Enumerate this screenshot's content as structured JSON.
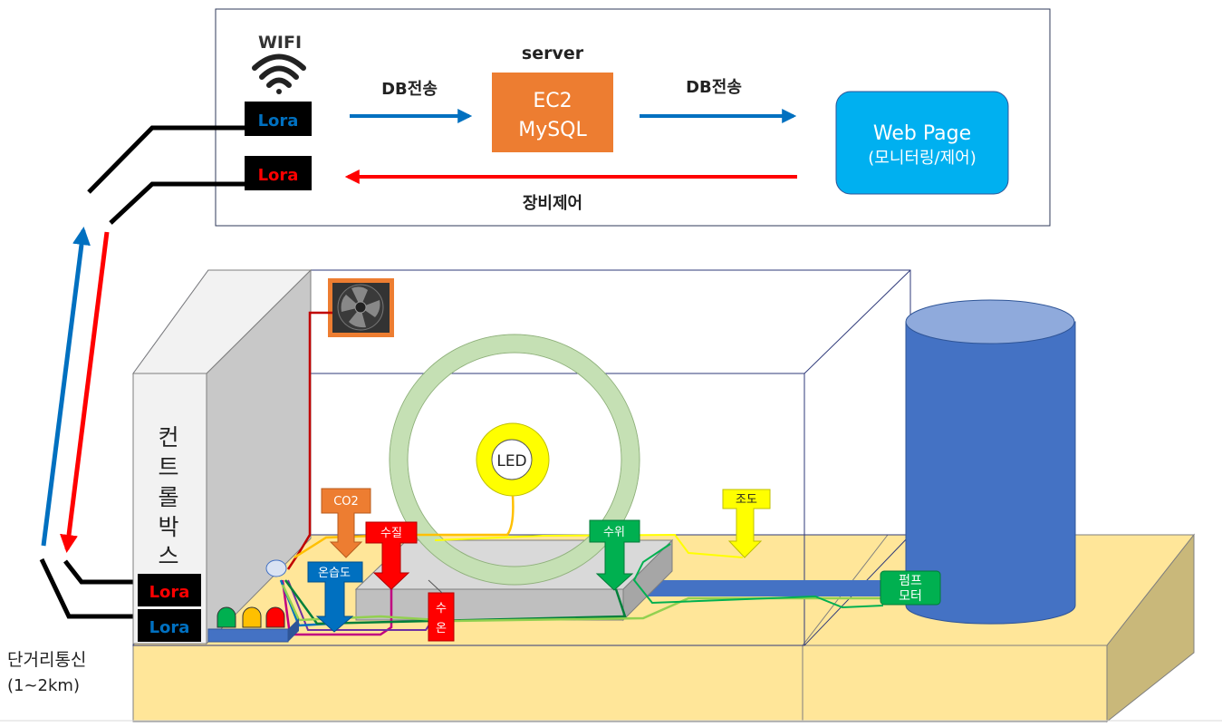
{
  "top_panel": {
    "wifi_label": "WIFI",
    "server_label": "server",
    "ec2_line1": "EC2",
    "ec2_line2": "MySQL",
    "db_send_left": "DB전송",
    "db_send_right": "DB전송",
    "webpage_line1": "Web Page",
    "webpage_line2": "(모니터링/제어)",
    "control_label": "장비제어",
    "lora_top_1": "Lora",
    "lora_top_2": "Lora"
  },
  "comm": {
    "line1": "단거리통신",
    "line2": "(1~2km)"
  },
  "control_box": {
    "chars": [
      "컨",
      "트",
      "롤",
      "박",
      "스"
    ],
    "lora_bottom_1": "Lora",
    "lora_bottom_2": "Lora"
  },
  "sensors": {
    "led": "LED",
    "co2": "CO2",
    "temp_humidity": "온습도",
    "water_quality": "수질",
    "water_temp_1": "수",
    "water_temp_2": "온",
    "water_level": "수위",
    "illuminance": "조도",
    "pump_1": "펌프",
    "pump_2": "모터"
  },
  "colors": {
    "ec2": "#ed7d31",
    "webpage": "#00b0f0",
    "blue_arrow": "#0070c0",
    "red_arrow": "#ff0000",
    "tank": "#4472c4",
    "ground": "#ffe699",
    "ring": "#c5e0b4",
    "led": "#ffff00",
    "water_level": "#00b050",
    "illuminance": "#ffff00"
  }
}
